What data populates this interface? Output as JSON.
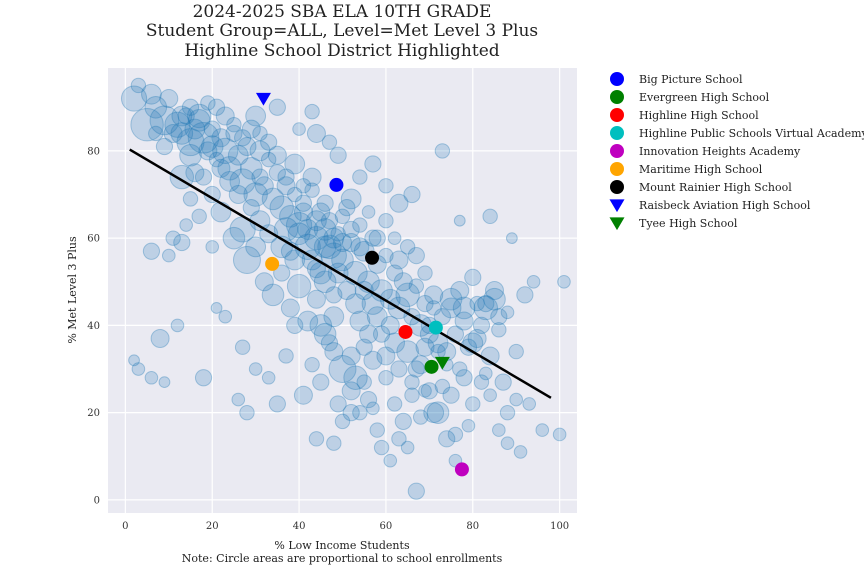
{
  "chart_data": {
    "type": "scatter",
    "title_lines": [
      "2024-2025 SBA ELA 10TH GRADE",
      "Student Group=ALL, Level=Met Level 3 Plus",
      "Highline School District Highlighted"
    ],
    "xlabel": "% Low Income Students",
    "note": "Note: Circle areas are proportional to school enrollments",
    "ylabel": "% Met Level 3 Plus",
    "xlim": [
      -4,
      104
    ],
    "ylim": [
      -3,
      99
    ],
    "xticks": [
      0,
      20,
      40,
      60,
      80,
      100
    ],
    "yticks": [
      0,
      20,
      40,
      60,
      80
    ],
    "grid": true,
    "background_color": "#eaeaf2",
    "point_color": "#1f77b4",
    "trend_line": {
      "x": [
        1,
        98
      ],
      "y": [
        80.3,
        23.4
      ],
      "color": "#000000"
    },
    "background_points": [
      [
        2,
        92,
        14
      ],
      [
        3,
        95,
        8
      ],
      [
        5,
        86,
        18
      ],
      [
        6,
        93,
        11
      ],
      [
        7,
        90,
        12
      ],
      [
        9,
        87,
        16
      ],
      [
        10,
        92,
        10
      ],
      [
        12,
        86,
        14
      ],
      [
        13,
        84,
        12
      ],
      [
        14,
        88,
        9
      ],
      [
        15,
        82,
        15
      ],
      [
        15,
        79,
        12
      ],
      [
        16,
        85,
        11
      ],
      [
        17,
        88,
        13
      ],
      [
        18,
        83,
        17
      ],
      [
        19,
        80,
        10
      ],
      [
        20,
        85,
        9
      ],
      [
        20,
        81,
        12
      ],
      [
        21,
        78,
        8
      ],
      [
        22,
        83,
        10
      ],
      [
        23,
        80,
        14
      ],
      [
        24,
        76,
        13
      ],
      [
        25,
        84,
        9
      ],
      [
        26,
        79,
        11
      ],
      [
        27,
        73,
        14
      ],
      [
        28,
        81,
        10
      ],
      [
        29,
        76,
        12
      ],
      [
        30,
        70,
        13
      ],
      [
        31,
        80,
        11
      ],
      [
        31,
        74,
        9
      ],
      [
        32,
        72,
        10
      ],
      [
        33,
        78,
        8
      ],
      [
        34,
        69,
        12
      ],
      [
        35,
        75,
        9
      ],
      [
        36,
        67,
        13
      ],
      [
        37,
        72,
        10
      ],
      [
        38,
        65,
        12
      ],
      [
        39,
        70,
        8
      ],
      [
        40,
        63,
        14
      ],
      [
        41,
        68,
        9
      ],
      [
        42,
        62,
        11
      ],
      [
        43,
        71,
        8
      ],
      [
        44,
        60,
        13
      ],
      [
        45,
        66,
        10
      ],
      [
        46,
        58,
        12
      ],
      [
        47,
        64,
        9
      ],
      [
        48,
        56,
        14
      ],
      [
        49,
        61,
        8
      ],
      [
        50,
        55,
        12
      ],
      [
        51,
        67,
        9
      ],
      [
        52,
        59,
        10
      ],
      [
        53,
        52,
        13
      ],
      [
        54,
        63,
        8
      ],
      [
        55,
        57,
        11
      ],
      [
        56,
        50,
        12
      ],
      [
        57,
        60,
        9
      ],
      [
        58,
        54,
        10
      ],
      [
        59,
        48,
        12
      ],
      [
        60,
        56,
        8
      ],
      [
        61,
        46,
        11
      ],
      [
        62,
        52,
        9
      ],
      [
        63,
        44,
        12
      ],
      [
        64,
        50,
        10
      ],
      [
        65,
        47,
        13
      ],
      [
        66,
        42,
        9
      ],
      [
        67,
        49,
        8
      ],
      [
        68,
        40,
        12
      ],
      [
        69,
        45,
        9
      ],
      [
        70,
        38,
        10
      ],
      [
        71,
        44,
        8
      ],
      [
        72,
        36,
        11
      ],
      [
        73,
        42,
        9
      ],
      [
        74,
        34,
        10
      ],
      [
        75,
        46,
        12
      ],
      [
        76,
        38,
        9
      ],
      [
        77,
        30,
        8
      ],
      [
        78,
        41,
        10
      ],
      [
        79,
        35,
        9
      ],
      [
        80,
        36,
        11
      ],
      [
        81,
        45,
        8
      ],
      [
        82,
        40,
        9
      ],
      [
        83,
        44,
        13
      ],
      [
        84,
        33,
        10
      ],
      [
        85,
        46,
        12
      ],
      [
        86,
        39,
        8
      ],
      [
        87,
        27,
        9
      ],
      [
        88,
        43,
        7
      ],
      [
        90,
        34,
        8
      ],
      [
        92,
        47,
        9
      ],
      [
        94,
        50,
        7
      ],
      [
        13,
        74,
        13
      ],
      [
        16,
        75,
        10
      ],
      [
        20,
        70,
        9
      ],
      [
        22,
        66,
        11
      ],
      [
        25,
        60,
        12
      ],
      [
        27,
        62,
        14
      ],
      [
        28,
        55,
        15
      ],
      [
        30,
        58,
        11
      ],
      [
        32,
        50,
        10
      ],
      [
        34,
        47,
        12
      ],
      [
        36,
        52,
        9
      ],
      [
        38,
        44,
        10
      ],
      [
        40,
        49,
        13
      ],
      [
        42,
        41,
        11
      ],
      [
        44,
        46,
        10
      ],
      [
        45,
        40,
        12
      ],
      [
        47,
        36,
        9
      ],
      [
        48,
        42,
        11
      ],
      [
        50,
        30,
        15
      ],
      [
        52,
        33,
        10
      ],
      [
        53,
        28,
        13
      ],
      [
        55,
        35,
        9
      ],
      [
        57,
        32,
        10
      ],
      [
        60,
        28,
        8
      ],
      [
        62,
        36,
        11
      ],
      [
        63,
        30,
        9
      ],
      [
        65,
        34,
        12
      ],
      [
        66,
        27,
        8
      ],
      [
        68,
        31,
        10
      ],
      [
        70,
        25,
        9
      ],
      [
        71,
        20,
        11
      ],
      [
        73,
        26,
        8
      ],
      [
        75,
        24,
        9
      ],
      [
        76,
        15,
        8
      ],
      [
        78,
        28,
        9
      ],
      [
        80,
        22,
        8
      ],
      [
        82,
        27,
        8
      ],
      [
        84,
        24,
        7
      ],
      [
        86,
        16,
        7
      ],
      [
        88,
        20,
        8
      ],
      [
        90,
        23,
        7
      ],
      [
        91,
        11,
        7
      ],
      [
        93,
        22,
        7
      ],
      [
        96,
        16,
        7
      ],
      [
        100,
        15,
        7
      ],
      [
        101,
        50,
        7
      ],
      [
        89,
        60,
        6
      ],
      [
        84,
        65,
        8
      ],
      [
        77,
        64,
        6
      ],
      [
        73,
        80,
        8
      ],
      [
        66,
        70,
        9
      ],
      [
        63,
        68,
        10
      ],
      [
        60,
        72,
        8
      ],
      [
        57,
        77,
        9
      ],
      [
        54,
        74,
        8
      ],
      [
        52,
        69,
        11
      ],
      [
        49,
        79,
        9
      ],
      [
        47,
        82,
        8
      ],
      [
        44,
        84,
        10
      ],
      [
        40,
        85,
        7
      ],
      [
        43,
        89,
        8
      ],
      [
        35,
        90,
        9
      ],
      [
        30,
        88,
        11
      ],
      [
        47,
        58,
        13
      ],
      [
        46,
        62,
        12
      ],
      [
        44,
        64,
        11
      ],
      [
        42,
        58,
        14
      ],
      [
        40,
        61,
        12
      ],
      [
        38,
        57,
        10
      ],
      [
        37,
        62,
        13
      ],
      [
        41,
        66,
        10
      ],
      [
        43,
        55,
        11
      ],
      [
        45,
        52,
        12
      ],
      [
        50,
        59,
        10
      ],
      [
        53,
        45,
        11
      ],
      [
        55,
        48,
        10
      ],
      [
        58,
        42,
        11
      ],
      [
        59,
        38,
        9
      ],
      [
        61,
        40,
        10
      ],
      [
        57,
        45,
        12
      ],
      [
        56,
        38,
        10
      ],
      [
        54,
        41,
        11
      ],
      [
        51,
        48,
        10
      ],
      [
        49,
        52,
        11
      ],
      [
        48,
        47,
        9
      ],
      [
        46,
        50,
        12
      ],
      [
        44,
        53,
        10
      ],
      [
        39,
        55,
        11
      ],
      [
        36,
        58,
        12
      ],
      [
        33,
        61,
        10
      ],
      [
        31,
        64,
        11
      ],
      [
        29,
        67,
        9
      ],
      [
        26,
        70,
        10
      ],
      [
        24,
        73,
        11
      ],
      [
        22,
        76,
        10
      ],
      [
        18,
        74,
        9
      ],
      [
        15,
        69,
        8
      ],
      [
        14,
        63,
        7
      ],
      [
        11,
        60,
        8
      ],
      [
        10,
        56,
        7
      ],
      [
        6,
        57,
        9
      ],
      [
        8,
        37,
        10
      ],
      [
        12,
        40,
        7
      ],
      [
        18,
        28,
        9
      ],
      [
        23,
        42,
        7
      ],
      [
        27,
        35,
        8
      ],
      [
        30,
        30,
        7
      ],
      [
        33,
        28,
        7
      ],
      [
        35,
        22,
        9
      ],
      [
        37,
        33,
        8
      ],
      [
        39,
        40,
        9
      ],
      [
        41,
        24,
        10
      ],
      [
        43,
        31,
        8
      ],
      [
        45,
        27,
        9
      ],
      [
        46,
        38,
        12
      ],
      [
        48,
        34,
        10
      ],
      [
        49,
        22,
        9
      ],
      [
        50,
        18,
        8
      ],
      [
        52,
        25,
        10
      ],
      [
        54,
        20,
        8
      ],
      [
        56,
        23,
        9
      ],
      [
        58,
        16,
        8
      ],
      [
        59,
        12,
        8
      ],
      [
        61,
        9,
        7
      ],
      [
        63,
        14,
        8
      ],
      [
        65,
        12,
        7
      ],
      [
        67,
        2,
        9
      ],
      [
        68,
        19,
        8
      ],
      [
        69,
        25,
        7
      ],
      [
        72,
        20,
        12
      ],
      [
        74,
        14,
        9
      ],
      [
        76,
        9,
        7
      ],
      [
        79,
        17,
        7
      ],
      [
        83,
        29,
        7
      ],
      [
        88,
        13,
        7
      ],
      [
        9,
        27,
        6
      ],
      [
        6,
        28,
        7
      ],
      [
        3,
        30,
        7
      ],
      [
        2,
        32,
        6
      ],
      [
        28,
        20,
        8
      ],
      [
        26,
        23,
        7
      ],
      [
        21,
        44,
        6
      ],
      [
        20,
        58,
        7
      ],
      [
        17,
        65,
        8
      ],
      [
        13,
        59,
        9
      ],
      [
        44,
        14,
        8
      ],
      [
        48,
        13,
        8
      ],
      [
        52,
        20,
        9
      ],
      [
        55,
        27,
        8
      ],
      [
        57,
        21,
        7
      ],
      [
        60,
        33,
        10
      ],
      [
        62,
        22,
        8
      ],
      [
        64,
        18,
        9
      ],
      [
        66,
        24,
        8
      ],
      [
        67,
        30,
        9
      ],
      [
        69,
        35,
        10
      ],
      [
        70,
        40,
        9
      ],
      [
        72,
        34,
        8
      ],
      [
        74,
        31,
        7
      ],
      [
        75,
        44,
        11
      ],
      [
        77,
        48,
        10
      ],
      [
        78,
        44,
        12
      ],
      [
        80,
        51,
        9
      ],
      [
        81,
        37,
        10
      ],
      [
        83,
        45,
        9
      ],
      [
        85,
        48,
        10
      ],
      [
        86,
        42,
        9
      ],
      [
        71,
        47,
        10
      ],
      [
        69,
        52,
        8
      ],
      [
        67,
        56,
        9
      ],
      [
        65,
        58,
        8
      ],
      [
        63,
        55,
        10
      ],
      [
        62,
        60,
        7
      ],
      [
        60,
        64,
        8
      ],
      [
        58,
        60,
        9
      ],
      [
        56,
        66,
        7
      ],
      [
        54,
        58,
        10
      ],
      [
        52,
        62,
        9
      ],
      [
        50,
        65,
        8
      ],
      [
        48,
        60,
        11
      ],
      [
        46,
        68,
        9
      ],
      [
        43,
        74,
        10
      ],
      [
        41,
        72,
        8
      ],
      [
        39,
        77,
        11
      ],
      [
        37,
        74,
        9
      ],
      [
        35,
        79,
        10
      ],
      [
        33,
        82,
        9
      ],
      [
        31,
        84,
        8
      ],
      [
        29,
        85,
        10
      ],
      [
        27,
        83,
        9
      ],
      [
        25,
        86,
        8
      ],
      [
        23,
        88,
        10
      ],
      [
        21,
        90,
        9
      ],
      [
        19,
        91,
        8
      ],
      [
        17,
        87,
        12
      ],
      [
        15,
        90,
        9
      ],
      [
        13,
        88,
        11
      ],
      [
        11,
        84,
        10
      ],
      [
        9,
        81,
        9
      ],
      [
        7,
        84,
        8
      ]
    ],
    "highlighted": [
      {
        "name": "Big Picture School",
        "x": 48.6,
        "y": 72.2,
        "color": "#0000ff",
        "marker": "circle"
      },
      {
        "name": "Evergreen High School",
        "x": 70.5,
        "y": 30.5,
        "color": "#008000",
        "marker": "circle"
      },
      {
        "name": "Highline High School",
        "x": 64.5,
        "y": 38.5,
        "color": "#ff0000",
        "marker": "circle"
      },
      {
        "name": "Highline Public Schools Virtual Academy",
        "x": 71.5,
        "y": 39.5,
        "color": "#00bfbf",
        "marker": "circle"
      },
      {
        "name": "Innovation Heights Academy",
        "x": 77.5,
        "y": 7.0,
        "color": "#bf00bf",
        "marker": "circle"
      },
      {
        "name": "Maritime High School",
        "x": 33.8,
        "y": 54.1,
        "color": "#ffa500",
        "marker": "circle"
      },
      {
        "name": "Mount Rainier High School",
        "x": 56.8,
        "y": 55.5,
        "color": "#000000",
        "marker": "circle"
      },
      {
        "name": "Raisbeck Aviation High School",
        "x": 31.8,
        "y": 92.0,
        "color": "#0000ff",
        "marker": "triangle-down"
      },
      {
        "name": "Tyee High School",
        "x": 73.0,
        "y": 31.5,
        "color": "#008000",
        "marker": "triangle-down"
      }
    ],
    "legend_position": "outside-right"
  }
}
